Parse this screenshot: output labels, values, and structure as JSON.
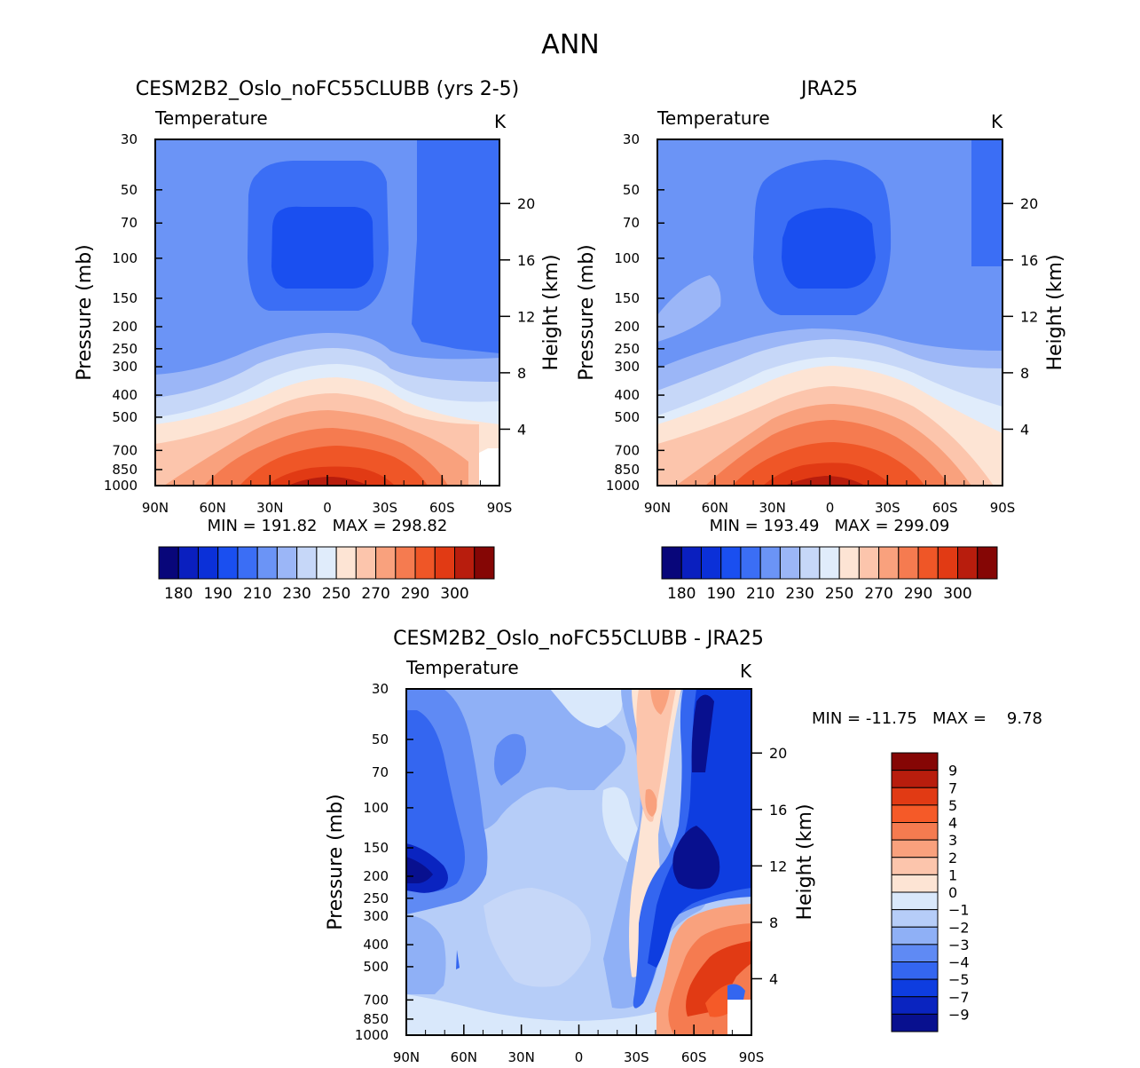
{
  "figure_title": "ANN",
  "chart_data": [
    {
      "type": "contour",
      "title": "CESM2B2_Oslo_noFC55CLUBB (yrs 2-5)",
      "variable": "Temperature",
      "units": "K",
      "xlabel": "",
      "ylabel": "Pressure (mb)",
      "ylabel_right": "Height (km)",
      "x_ticks": [
        "90N",
        "60N",
        "30N",
        "0",
        "30S",
        "60S",
        "90S"
      ],
      "y_ticks": [
        "30",
        "50",
        "70",
        "100",
        "150",
        "200",
        "250",
        "300",
        "400",
        "500",
        "700",
        "850",
        "1000"
      ],
      "y_ticks_right": [
        "20",
        "16",
        "12",
        "8",
        "4"
      ],
      "min_max_label": "MIN = 191.82   MAX = 298.82",
      "min": 191.82,
      "max": 298.82,
      "colorbar": {
        "labels": [
          "180",
          "190",
          "210",
          "230",
          "250",
          "270",
          "290",
          "300"
        ],
        "colors": [
          "#08067a",
          "#0a1fbf",
          "#0b30d8",
          "#1a4ff0",
          "#3b6ef5",
          "#6b94f6",
          "#9bb6f7",
          "#c6d7f8",
          "#e0ecfb",
          "#fde4d4",
          "#fcc5ac",
          "#f9a17d",
          "#f57b50",
          "#ef5627",
          "#e13a14",
          "#b81d0d",
          "#850605"
        ]
      }
    },
    {
      "type": "contour",
      "title": "JRA25",
      "variable": "Temperature",
      "units": "K",
      "xlabel": "",
      "ylabel": "Pressure (mb)",
      "ylabel_right": "Height (km)",
      "x_ticks": [
        "90N",
        "60N",
        "30N",
        "0",
        "30S",
        "60S",
        "90S"
      ],
      "y_ticks": [
        "30",
        "50",
        "70",
        "100",
        "150",
        "200",
        "250",
        "300",
        "400",
        "500",
        "700",
        "850",
        "1000"
      ],
      "y_ticks_right": [
        "20",
        "16",
        "12",
        "8",
        "4"
      ],
      "min_max_label": "MIN = 193.49   MAX = 299.09",
      "min": 193.49,
      "max": 299.09,
      "colorbar": {
        "labels": [
          "180",
          "190",
          "210",
          "230",
          "250",
          "270",
          "290",
          "300"
        ],
        "colors": [
          "#08067a",
          "#0a1fbf",
          "#0b30d8",
          "#1a4ff0",
          "#3b6ef5",
          "#6b94f6",
          "#9bb6f7",
          "#c6d7f8",
          "#e0ecfb",
          "#fde4d4",
          "#fcc5ac",
          "#f9a17d",
          "#f57b50",
          "#ef5627",
          "#e13a14",
          "#b81d0d",
          "#850605"
        ]
      }
    },
    {
      "type": "contour",
      "title": "CESM2B2_Oslo_noFC55CLUBB - JRA25",
      "variable": "Temperature",
      "units": "K",
      "xlabel": "",
      "ylabel": "Pressure (mb)",
      "ylabel_right": "Height (km)",
      "x_ticks": [
        "90N",
        "60N",
        "30N",
        "0",
        "30S",
        "60S",
        "90S"
      ],
      "y_ticks": [
        "30",
        "50",
        "70",
        "100",
        "150",
        "200",
        "250",
        "300",
        "400",
        "500",
        "700",
        "850",
        "1000"
      ],
      "y_ticks_right": [
        "20",
        "16",
        "12",
        "8",
        "4"
      ],
      "min_max_label": "MIN = -11.75   MAX =    9.78",
      "min": -11.75,
      "max": 9.78,
      "colorbar": {
        "labels": [
          "9",
          "7",
          "5",
          "4",
          "3",
          "2",
          "1",
          "0",
          "-1",
          "-2",
          "-3",
          "-4",
          "-5",
          "-7",
          "-9"
        ],
        "colors": [
          "#850605",
          "#b81d0d",
          "#e13a14",
          "#f55a28",
          "#f57b50",
          "#f9a17d",
          "#fcc5ac",
          "#fde4d4",
          "#d9e8fb",
          "#b6cdf8",
          "#8fb0f6",
          "#5f8af4",
          "#3466f0",
          "#0e3de0",
          "#0a24c0",
          "#08108f"
        ]
      }
    }
  ]
}
